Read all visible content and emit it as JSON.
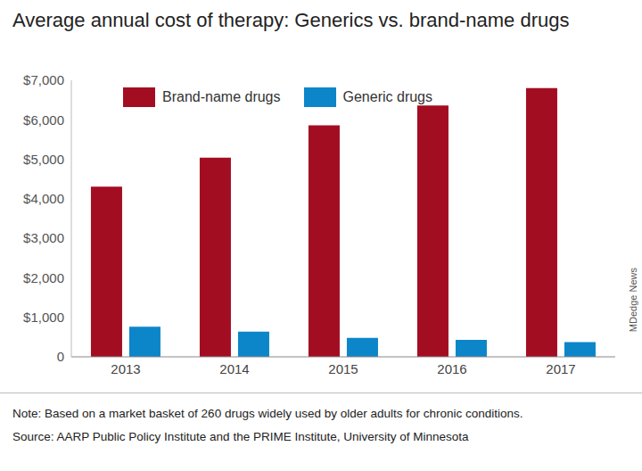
{
  "chart_data": {
    "type": "bar",
    "title": "Average annual cost of therapy: Generics vs. brand-name drugs",
    "categories": [
      "2013",
      "2014",
      "2015",
      "2016",
      "2017"
    ],
    "series": [
      {
        "name": "Brand-name drugs",
        "color": "#a30d22",
        "values": [
          4310,
          5040,
          5860,
          6360,
          6800
        ]
      },
      {
        "name": "Generic drugs",
        "color": "#0c86c9",
        "values": [
          760,
          640,
          480,
          430,
          370
        ]
      }
    ],
    "ylim": [
      0,
      7000
    ],
    "yticks": [
      0,
      {
        "value": 1000,
        "label": "$1,000"
      },
      {
        "value": 2000,
        "label": "$2,000"
      },
      {
        "value": 3000,
        "label": "$3,000"
      },
      {
        "value": 4000,
        "label": "$4,000"
      },
      {
        "value": 5000,
        "label": "$5,000"
      },
      {
        "value": 6000,
        "label": "$6,000"
      },
      {
        "value": 7000,
        "label": "$7,000"
      }
    ],
    "grid": false,
    "legend": "top-left",
    "notes": [
      "Note: Based on a market basket of 260 drugs widely used by older adults for chronic conditions.",
      "Source: AARP Public Policy Institute and the PRIME Institute, University of Minnesota"
    ],
    "credit": "MDedge News"
  }
}
